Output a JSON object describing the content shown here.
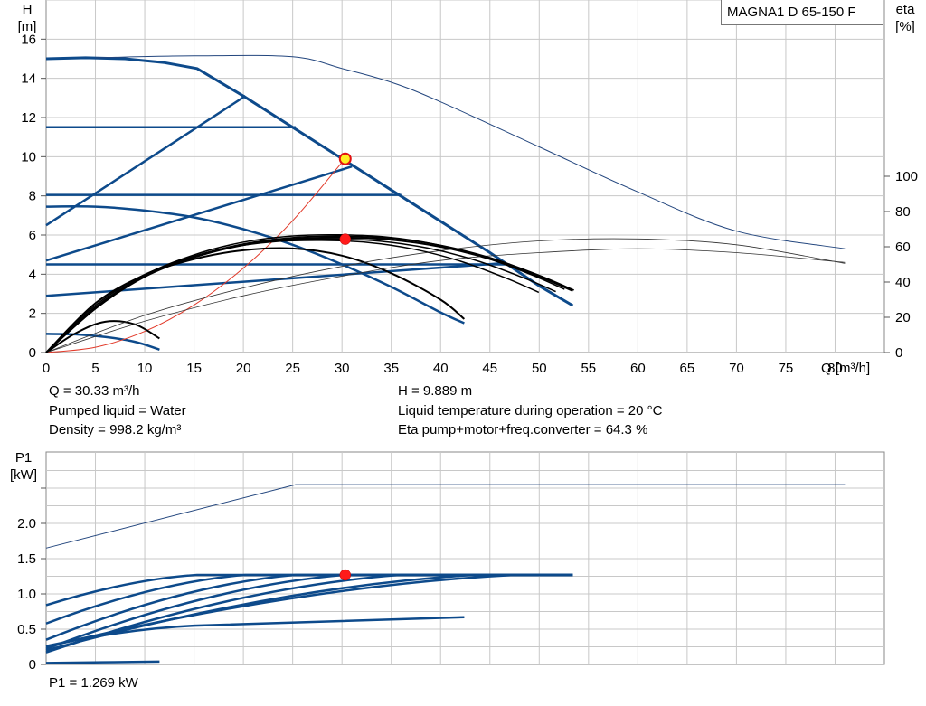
{
  "model": "MAGNA1 D 65-150 F",
  "info": {
    "q": "Q = 30.33 m³/h",
    "liquid": "Pumped liquid = Water",
    "density": "Density = 998.2 kg/m³",
    "h": "H = 9.889 m",
    "temp": "Liquid temperature during operation = 20 °C",
    "eta": "Eta pump+motor+freq.converter = 64.3 %",
    "p1": "P1 = 1.269 kW"
  },
  "chart_data": [
    {
      "type": "line",
      "title": "",
      "xlabel": "Q [m³/h]",
      "ylabel": "H [m]",
      "y2label": "eta [%]",
      "xlim": [
        0,
        85
      ],
      "ylim": [
        0,
        18
      ],
      "y2lim": [
        0,
        100
      ],
      "x_ticks": [
        "0",
        "5",
        "10",
        "15",
        "20",
        "25",
        "30",
        "35",
        "40",
        "45",
        "50",
        "55",
        "60",
        "65",
        "70",
        "75",
        "80"
      ],
      "y_ticks": [
        "0",
        "2",
        "4",
        "6",
        "8",
        "10",
        "12",
        "14",
        "16"
      ],
      "y2_ticks": [
        "0",
        "20",
        "40",
        "60",
        "80",
        "100"
      ],
      "grid": true,
      "series": [
        {
          "role": "max-curve",
          "x": [
            0,
            4,
            8,
            12,
            15.3,
            20,
            25,
            30,
            35,
            40,
            45,
            50,
            53.4
          ],
          "y": [
            15.0,
            15.05,
            15.0,
            14.8,
            14.5,
            13.1,
            11.5,
            9.9,
            8.3,
            6.7,
            5.1,
            3.4,
            2.4
          ]
        },
        {
          "role": "max-speed-ext",
          "x": [
            5,
            15,
            25,
            30,
            35,
            40,
            50,
            60,
            70,
            81
          ],
          "y": [
            15.05,
            15.15,
            15.1,
            14.5,
            13.8,
            12.8,
            10.5,
            8.2,
            6.2,
            5.3
          ]
        },
        {
          "role": "proportional-pressure",
          "x": [
            0,
            20.2
          ],
          "y": [
            6.5,
            13.1
          ]
        },
        {
          "role": "proportional-pressure",
          "x": [
            0,
            31
          ],
          "y": [
            4.7,
            9.5
          ]
        },
        {
          "role": "proportional-pressure",
          "x": [
            0,
            46
          ],
          "y": [
            2.9,
            4.55
          ]
        },
        {
          "role": "constant-pressure",
          "x": [
            0,
            25.3
          ],
          "y": [
            11.5,
            11.5
          ]
        },
        {
          "role": "constant-pressure",
          "x": [
            0,
            36
          ],
          "y": [
            8.05,
            8.05
          ]
        },
        {
          "role": "constant-pressure",
          "x": [
            0,
            47
          ],
          "y": [
            4.5,
            4.5
          ]
        },
        {
          "role": "speed-curve",
          "x": [
            0,
            5,
            10,
            15,
            20,
            25,
            30,
            35,
            40,
            42.4
          ],
          "y": [
            7.45,
            7.45,
            7.25,
            6.9,
            6.3,
            5.5,
            4.5,
            3.35,
            2.05,
            1.5
          ]
        },
        {
          "role": "speed-curve",
          "x": [
            0,
            3,
            6,
            9,
            11.5
          ],
          "y": [
            0.95,
            0.93,
            0.8,
            0.55,
            0.15
          ]
        },
        {
          "role": "system-curve",
          "x": [
            0,
            5,
            10,
            15,
            20,
            25,
            30.3
          ],
          "y": [
            0,
            0.27,
            1.08,
            2.43,
            4.31,
            6.73,
            9.89
          ]
        },
        {
          "role": "efficiency",
          "axis": "y2",
          "x": [
            0,
            5,
            10,
            15,
            20,
            25,
            30,
            35,
            40,
            45,
            50,
            53.4
          ],
          "y": [
            0,
            25,
            43,
            54,
            61,
            64.5,
            65.2,
            64,
            60,
            53,
            43,
            35
          ]
        },
        {
          "role": "efficiency",
          "axis": "y2",
          "x": [
            0,
            5,
            10,
            15,
            20,
            25,
            30,
            35,
            40,
            42.4
          ],
          "y": [
            0,
            28,
            44,
            53,
            58,
            59,
            55,
            45,
            30,
            19
          ]
        },
        {
          "role": "efficiency",
          "axis": "y2",
          "x": [
            0,
            3,
            6,
            9,
            11.5
          ],
          "y": [
            0,
            11,
            17.5,
            16,
            8
          ]
        },
        {
          "role": "npsh",
          "x": [
            0,
            10,
            20,
            30,
            40,
            50,
            60,
            70,
            81
          ],
          "y": [
            0,
            1.9,
            3.3,
            4.4,
            5.2,
            5.7,
            5.8,
            5.5,
            4.55
          ]
        },
        {
          "role": "npsh",
          "x": [
            0,
            10,
            20,
            30,
            40,
            50,
            60,
            70,
            81
          ],
          "y": [
            0,
            1.6,
            2.9,
            3.9,
            4.7,
            5.1,
            5.3,
            5.1,
            4.6
          ]
        }
      ],
      "duty_point": {
        "q": 30.33,
        "h": 9.889,
        "eta": 64.3
      }
    },
    {
      "type": "line",
      "title": "",
      "xlabel": "",
      "ylabel": "P1 [kW]",
      "xlim": [
        0,
        85
      ],
      "ylim": [
        0,
        2.5
      ],
      "y_ticks": [
        "0",
        "0.5",
        "1.0",
        "1.5",
        "2.0"
      ],
      "grid": true,
      "series": [
        {
          "role": "max-power-ext",
          "x": [
            0,
            25.3,
            81
          ],
          "y": [
            1.65,
            2.55,
            2.55
          ]
        },
        {
          "role": "power",
          "x": [
            0,
            15.3,
            53.4
          ],
          "y": [
            0.84,
            1.27,
            1.27
          ]
        },
        {
          "role": "power",
          "x": [
            0,
            20.2,
            53.4
          ],
          "y": [
            0.58,
            1.27,
            1.27
          ]
        },
        {
          "role": "power",
          "x": [
            0,
            25.3,
            53.4
          ],
          "y": [
            0.35,
            1.27,
            1.27
          ]
        },
        {
          "role": "power",
          "x": [
            0,
            30.3,
            53.4
          ],
          "y": [
            0.22,
            1.27,
            1.27
          ]
        },
        {
          "role": "power",
          "x": [
            0,
            36,
            53.4
          ],
          "y": [
            0.17,
            1.27,
            1.27
          ]
        },
        {
          "role": "power",
          "x": [
            0,
            43.5,
            53.4
          ],
          "y": [
            0.2,
            1.27,
            1.27
          ]
        },
        {
          "role": "power",
          "x": [
            0,
            47.5,
            53.4
          ],
          "y": [
            0.25,
            1.27,
            1.27
          ]
        },
        {
          "role": "power",
          "x": [
            0,
            15,
            42.4
          ],
          "y": [
            0.26,
            0.55,
            0.67
          ]
        },
        {
          "role": "power",
          "x": [
            0,
            11.5
          ],
          "y": [
            0.02,
            0.04
          ]
        }
      ],
      "duty_point": {
        "q": 30.33,
        "p1": 1.269
      }
    }
  ],
  "colors": {
    "curve": "#0d4a8b",
    "thin": "#23467e",
    "system": "#e23a2a",
    "eff": "#000000",
    "grid": "#c8c8c8",
    "duty_red": "#ff1a1a",
    "duty_yellow": "#ffee22"
  }
}
